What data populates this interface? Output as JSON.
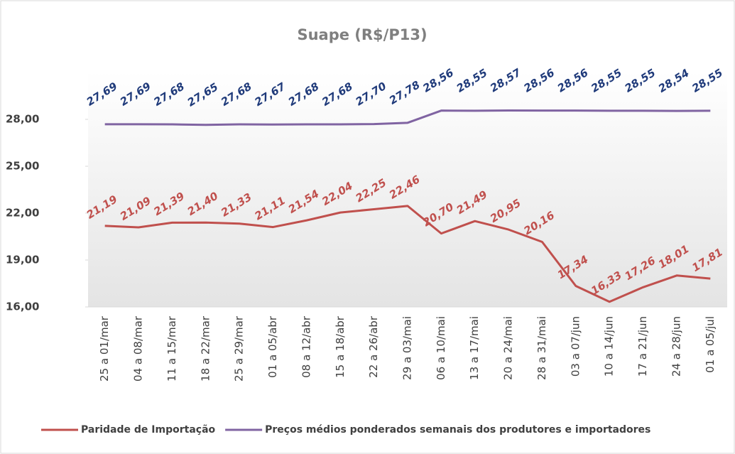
{
  "chart_data": {
    "type": "line",
    "title": "Suape (R$/P13)",
    "categories": [
      "25 a 01/mar",
      "04 a 08/mar",
      "11 a 15/mar",
      "18 a 22/mar",
      "25 a 29/mar",
      "01 a 05/abr",
      "08 a 12/abr",
      "15 a 18/abr",
      "22 a 26/abr",
      "29 a 03/mai",
      "06 a 10/mai",
      "13 a 17/mai",
      "20 a 24/mai",
      "28 a 31/mai",
      "03 a 07/jun",
      "10 a 14/jun",
      "17 a 21/jun",
      "24 a 28/jun",
      "01 a 05/jul"
    ],
    "series": [
      {
        "name": "Paridade de Importação",
        "color": "#c0504d",
        "label_color": "#c0504d",
        "values": [
          21.19,
          21.09,
          21.39,
          21.4,
          21.33,
          21.11,
          21.54,
          22.04,
          22.25,
          22.46,
          20.7,
          21.49,
          20.95,
          20.16,
          17.34,
          16.33,
          17.26,
          18.01,
          17.81
        ],
        "value_labels": [
          "21,19",
          "21,09",
          "21,39",
          "21,40",
          "21,33",
          "21,11",
          "21,54",
          "22,04",
          "22,25",
          "22,46",
          "20,70",
          "21,49",
          "20,95",
          "20,16",
          "17,34",
          "16,33",
          "17,26",
          "18,01",
          "17,81"
        ]
      },
      {
        "name": "Preços médios ponderados semanais dos produtores e importadores",
        "color": "#8064a2",
        "label_color": "#1f3a7a",
        "values": [
          27.69,
          27.69,
          27.68,
          27.65,
          27.68,
          27.67,
          27.68,
          27.68,
          27.7,
          27.78,
          28.56,
          28.55,
          28.57,
          28.56,
          28.56,
          28.55,
          28.55,
          28.54,
          28.55
        ],
        "value_labels": [
          "27,69",
          "27,69",
          "27,68",
          "27,65",
          "27,68",
          "27,67",
          "27,68",
          "27,68",
          "27,70",
          "27,78",
          "28,56",
          "28,55",
          "28,57",
          "28,56",
          "28,56",
          "28,55",
          "28,55",
          "28,54",
          "28,55"
        ]
      }
    ],
    "ylim": [
      16,
      31
    ],
    "yticks": [
      {
        "value": 16,
        "label": "16,00"
      },
      {
        "value": 19,
        "label": "19,00"
      },
      {
        "value": 22,
        "label": "22,00"
      },
      {
        "value": 25,
        "label": "25,00"
      },
      {
        "value": 28,
        "label": "28,00"
      }
    ],
    "legend": "bottom"
  }
}
